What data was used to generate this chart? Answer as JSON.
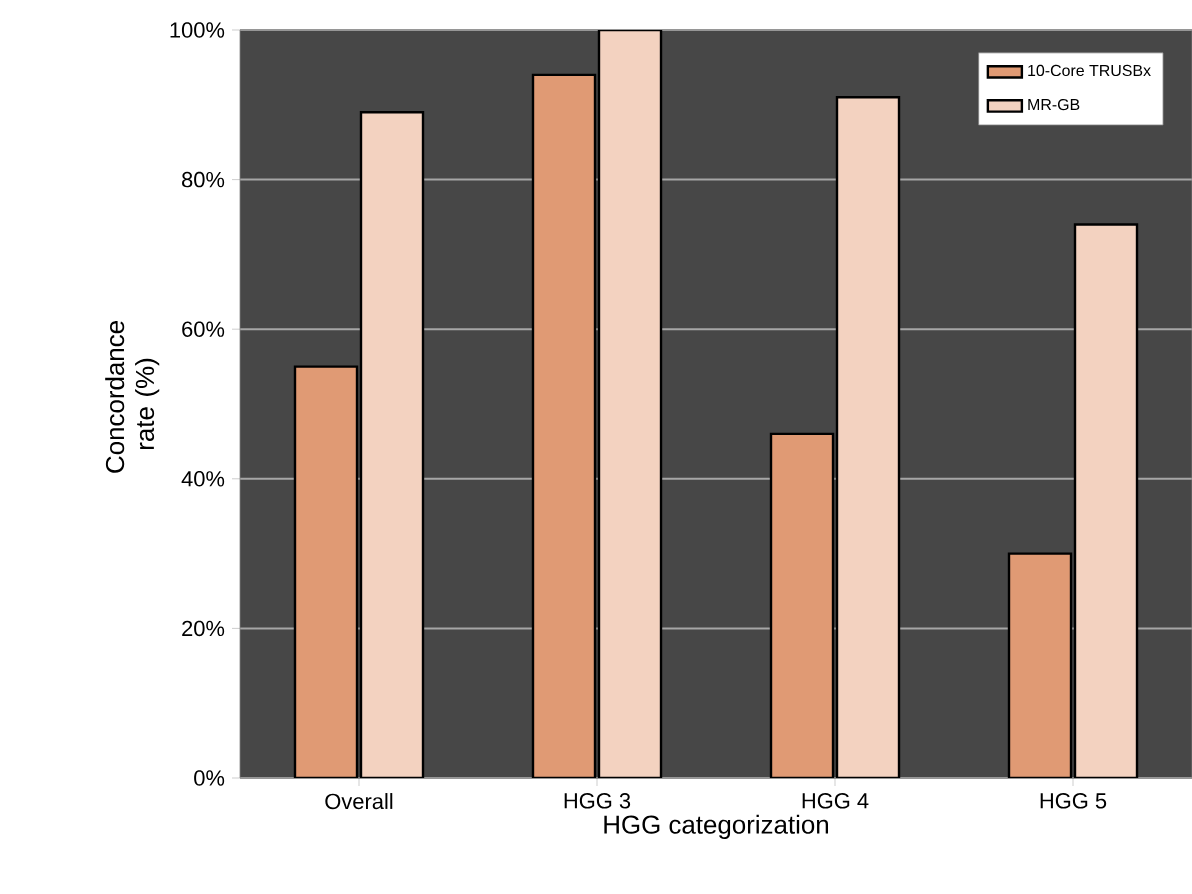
{
  "chart_data": {
    "type": "bar",
    "xlabel": "HGG categorization",
    "ylabel": "Concordance rate (%)",
    "categories": [
      "Overall",
      "HGG 3",
      "HGG 4",
      "HGG 5"
    ],
    "series": [
      {
        "name": "10-Core TRUSBx",
        "color": "#e09a74",
        "values": [
          55,
          94,
          46,
          30
        ]
      },
      {
        "name": "MR-GB",
        "color": "#f3d2c0",
        "values": [
          89,
          100,
          91,
          74
        ]
      }
    ],
    "ylim": [
      0,
      100
    ],
    "yticks": [
      {
        "value": 0,
        "label": "0%"
      },
      {
        "value": 20,
        "label": "20%"
      },
      {
        "value": 40,
        "label": "40%"
      },
      {
        "value": 60,
        "label": "60%"
      },
      {
        "value": 80,
        "label": "80%"
      },
      {
        "value": 100,
        "label": "100%"
      }
    ],
    "grid": "y",
    "legend": "top right"
  }
}
